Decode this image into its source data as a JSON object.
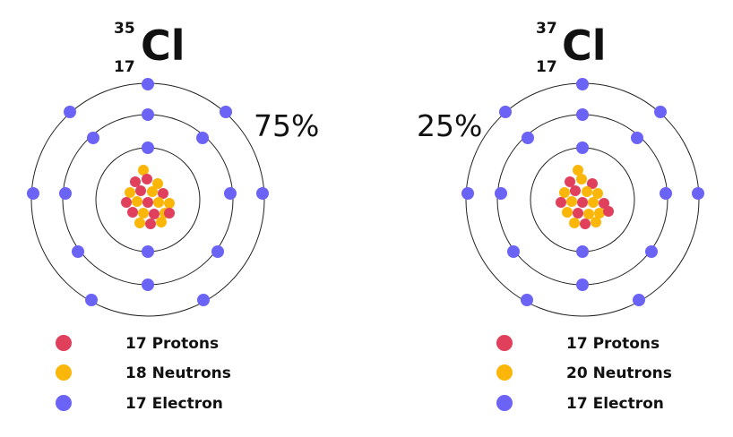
{
  "atoms": [
    {
      "mass_number": "35",
      "atomic_number": "17",
      "symbol": "Cl",
      "abundance": "75%",
      "legend": [
        {
          "label": "17 Protons",
          "color": "#e0405c"
        },
        {
          "label": "18 Neutrons",
          "color": "#fbb60a"
        },
        {
          "label": "17 Electron",
          "color": "#6b63f5"
        }
      ]
    },
    {
      "mass_number": "37",
      "atomic_number": "17",
      "symbol": "Cl",
      "abundance": "25%",
      "legend": [
        {
          "label": "17 Protons",
          "color": "#e0405c"
        },
        {
          "label": "20 Neutrons",
          "color": "#fbb60a"
        },
        {
          "label": "17 Electron",
          "color": "#6b63f5"
        }
      ]
    }
  ],
  "colors": {
    "proton": "#e0405c",
    "neutron": "#fbb60a",
    "electron": "#6b63f5",
    "orbit": "#222222"
  },
  "shells": [
    2,
    8,
    7
  ]
}
